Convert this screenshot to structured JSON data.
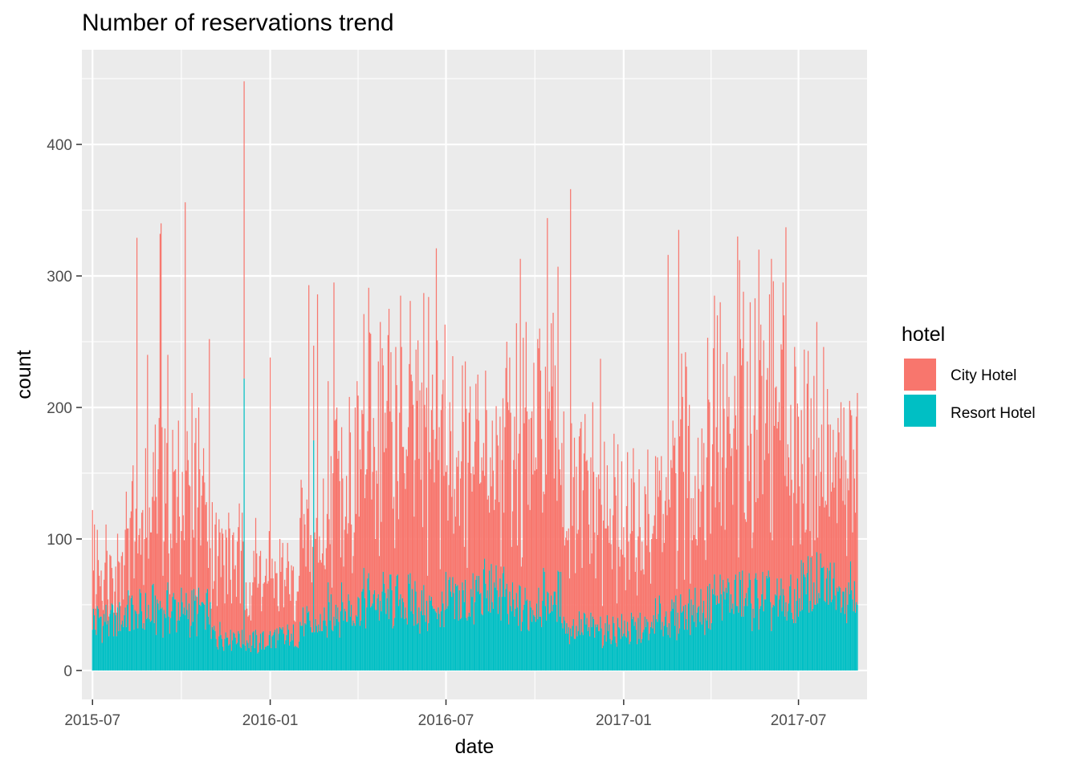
{
  "chart_data": {
    "type": "bar",
    "stacked": true,
    "title": "Number of reservations trend",
    "xlabel": "date",
    "ylabel": "count",
    "x_range": [
      "2015-06-20",
      "2017-09-10"
    ],
    "xlim_labels": [
      "2015-07",
      "2016-01",
      "2016-07",
      "2017-01",
      "2017-07"
    ],
    "x_ticks": [
      "2015-07-01",
      "2016-01-01",
      "2016-07-01",
      "2017-01-01",
      "2017-07-01"
    ],
    "ylim": [
      -22,
      472
    ],
    "y_ticks": [
      0,
      100,
      200,
      300,
      400
    ],
    "grid": true,
    "legend": {
      "title": "hotel",
      "placement": "right",
      "entries": [
        {
          "name": "City Hotel",
          "color": "#F8766D"
        },
        {
          "name": "Resort Hotel",
          "color": "#00BFC4"
        }
      ]
    },
    "series": [
      {
        "name": "Resort Hotel",
        "color": "#00BFC4",
        "month_index": [
          "2015-07",
          "2015-08",
          "2015-09",
          "2015-10",
          "2015-11",
          "2015-12",
          "2016-01",
          "2016-02",
          "2016-03",
          "2016-04",
          "2016-05",
          "2016-06",
          "2016-07",
          "2016-08",
          "2016-09",
          "2016-10",
          "2016-11",
          "2016-12",
          "2017-01",
          "2017-02",
          "2017-03",
          "2017-04",
          "2017-05",
          "2017-06",
          "2017-07",
          "2017-08"
        ],
        "monthly_typical": [
          42,
          48,
          52,
          50,
          30,
          24,
          28,
          38,
          52,
          60,
          58,
          52,
          58,
          66,
          52,
          60,
          36,
          34,
          34,
          44,
          52,
          62,
          60,
          56,
          70,
          72
        ]
      },
      {
        "name": "City Hotel",
        "color": "#F8766D",
        "month_index": [
          "2015-07",
          "2015-08",
          "2015-09",
          "2015-10",
          "2015-11",
          "2015-12",
          "2016-01",
          "2016-02",
          "2016-03",
          "2016-04",
          "2016-05",
          "2016-06",
          "2016-07",
          "2016-08",
          "2016-09",
          "2016-10",
          "2016-11",
          "2016-12",
          "2017-01",
          "2017-02",
          "2017-03",
          "2017-04",
          "2017-05",
          "2017-06",
          "2017-07",
          "2017-08"
        ],
        "monthly_typical": [
          42,
          70,
          90,
          95,
          65,
          55,
          45,
          70,
          110,
          130,
          130,
          140,
          110,
          105,
          130,
          135,
          100,
          90,
          80,
          95,
          120,
          130,
          150,
          150,
          115,
          105
        ]
      }
    ],
    "peaks": [
      {
        "date": "2015-12-05",
        "total": 448
      },
      {
        "date": "2016-11-07",
        "total": 366
      },
      {
        "date": "2015-10-05",
        "total": 356
      },
      {
        "date": "2016-10-14",
        "total": 344
      },
      {
        "date": "2015-09-10",
        "total": 340
      },
      {
        "date": "2017-06-18",
        "total": 337
      },
      {
        "date": "2017-02-27",
        "total": 335
      },
      {
        "date": "2015-09-09",
        "total": 332
      },
      {
        "date": "2017-04-29",
        "total": 330
      },
      {
        "date": "2015-08-16",
        "total": 329
      },
      {
        "date": "2016-06-21",
        "total": 321
      },
      {
        "date": "2017-05-21",
        "total": 320
      },
      {
        "date": "2016-09-16",
        "total": 313
      },
      {
        "date": "2017-06-03",
        "total": 313
      },
      {
        "date": "2016-10-25",
        "total": 307
      },
      {
        "date": "2017-02-16",
        "total": 316
      },
      {
        "date": "2016-03-07",
        "total": 295
      },
      {
        "date": "2016-02-10",
        "total": 293
      },
      {
        "date": "2016-04-12",
        "total": 291
      },
      {
        "date": "2016-02-19",
        "total": 286
      },
      {
        "date": "2016-06-13",
        "total": 284
      },
      {
        "date": "2016-05-15",
        "total": 285
      },
      {
        "date": "2017-07-20",
        "total": 265
      },
      {
        "date": "2016-04-24",
        "total": 265
      },
      {
        "date": "2017-04-08",
        "total": 270
      },
      {
        "date": "2016-05-03",
        "total": 275
      },
      {
        "date": "2015-10-30",
        "total": 252
      },
      {
        "date": "2015-09-17",
        "total": 240
      },
      {
        "date": "2016-01-01",
        "total": 238
      },
      {
        "date": "2016-12-08",
        "total": 237
      },
      {
        "date": "2015-08-27",
        "total": 240
      },
      {
        "date": "2015-07-01",
        "total": 122
      },
      {
        "date": "2017-08-31",
        "total": 211
      }
    ],
    "resort_peaks": [
      {
        "date": "2015-12-05",
        "value": 222
      },
      {
        "date": "2016-02-15",
        "value": 175
      }
    ]
  }
}
